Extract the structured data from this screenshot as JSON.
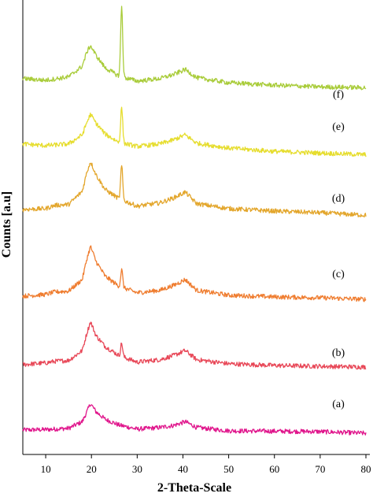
{
  "chart_data": {
    "type": "line",
    "title": "",
    "xlabel": "2-Theta-Scale",
    "ylabel": "Counts [a.u]",
    "xlim": [
      5,
      80
    ],
    "xticks": [
      10,
      20,
      30,
      40,
      50,
      60,
      70,
      80
    ],
    "grid": false,
    "legend": "none",
    "series": [
      {
        "label": "(a)",
        "color": "#e0168c",
        "x": [
          5,
          10,
          15,
          18,
          19,
          19.8,
          21,
          23,
          26,
          30,
          35,
          38,
          40.5,
          43,
          50,
          60,
          70,
          80
        ],
        "y": [
          0.2,
          0.25,
          0.4,
          1.2,
          2.4,
          3.4,
          2.4,
          1.5,
          0.8,
          0.3,
          0.5,
          0.75,
          1.2,
          0.5,
          0.1,
          0.05,
          0.0,
          -0.2
        ],
        "peaks": []
      },
      {
        "label": "(b)",
        "color": "#e84858",
        "x": [
          5,
          10,
          12,
          15,
          18,
          19,
          19.8,
          21,
          23,
          26,
          30,
          35,
          38,
          40.5,
          43,
          50,
          60,
          70,
          80
        ],
        "y": [
          0.2,
          0.4,
          0.6,
          0.7,
          1.9,
          4.0,
          5.4,
          3.7,
          2.4,
          1.3,
          0.5,
          0.8,
          1.3,
          1.9,
          0.8,
          0.3,
          0.1,
          0.0,
          -0.1
        ],
        "peaks": [
          {
            "x": 26.6,
            "h": 1.6
          }
        ]
      },
      {
        "label": "(c)",
        "color": "#ef7d30",
        "x": [
          5,
          10,
          12,
          15,
          18,
          19,
          19.8,
          21,
          23,
          26,
          30,
          35,
          38,
          40.5,
          43,
          50,
          60,
          70,
          80
        ],
        "y": [
          0.2,
          0.4,
          0.7,
          0.8,
          2.2,
          4.7,
          6.2,
          4.4,
          2.6,
          1.4,
          0.6,
          0.9,
          1.5,
          2.2,
          0.9,
          0.3,
          0.1,
          0.0,
          -0.2
        ],
        "peaks": [
          {
            "x": 26.6,
            "h": 2.1
          }
        ]
      },
      {
        "label": "(d)",
        "color": "#e3a62c",
        "x": [
          5,
          10,
          12,
          15,
          18,
          19,
          19.8,
          21,
          23,
          26,
          30,
          35,
          38,
          40.5,
          43,
          50,
          60,
          70,
          80
        ],
        "y": [
          0.2,
          0.3,
          0.7,
          0.8,
          2.4,
          4.7,
          6.0,
          4.4,
          2.6,
          1.5,
          0.6,
          1.0,
          1.6,
          2.3,
          0.9,
          0.3,
          0.0,
          -0.2,
          -0.5
        ],
        "peaks": [
          {
            "x": 26.6,
            "h": 4.1
          }
        ]
      },
      {
        "label": "(e)",
        "color": "#e6dd2e",
        "x": [
          5,
          10,
          15,
          18,
          19,
          19.8,
          21,
          23,
          26,
          30,
          35,
          38,
          40.5,
          43,
          50,
          60,
          70,
          80
        ],
        "y": [
          0.5,
          0.3,
          0.5,
          1.6,
          3.1,
          4.1,
          3.0,
          1.7,
          0.7,
          0.2,
          0.5,
          1.0,
          1.6,
          0.6,
          0.0,
          -0.4,
          -0.6,
          -0.8
        ],
        "peaks": [
          {
            "x": 26.6,
            "h": 4.3
          }
        ]
      },
      {
        "label": "(f)",
        "color": "#a9cc3a",
        "x": [
          5,
          10,
          15,
          18,
          19,
          19.8,
          21,
          23,
          26,
          30,
          35,
          38,
          40.5,
          43,
          50,
          60,
          70,
          80
        ],
        "y": [
          0.5,
          0.3,
          0.7,
          2.0,
          3.7,
          4.5,
          3.3,
          1.8,
          0.8,
          0.2,
          0.5,
          1.0,
          1.6,
          0.6,
          0.0,
          -0.3,
          -0.5,
          -0.6
        ],
        "peaks": [
          {
            "x": 26.6,
            "h": 8.5
          }
        ]
      }
    ]
  }
}
